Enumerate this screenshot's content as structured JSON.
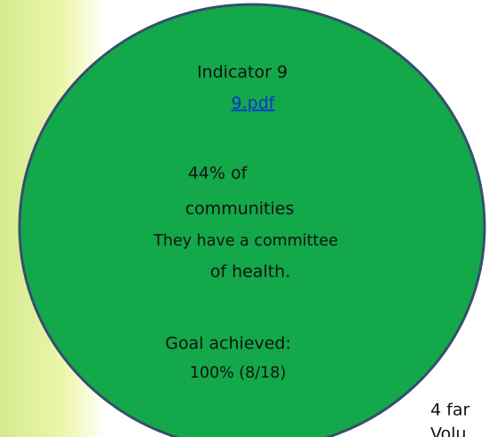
{
  "indicator": "Indicator 9",
  "link": "9.pdf",
  "lines": [
    "44% of",
    "communities",
    "They have a committee",
    "of health."
  ],
  "goal": [
    "Goal achieved:",
    "100% (8/18)"
  ],
  "cropped_text": [
    "4 far",
    "Volu"
  ]
}
